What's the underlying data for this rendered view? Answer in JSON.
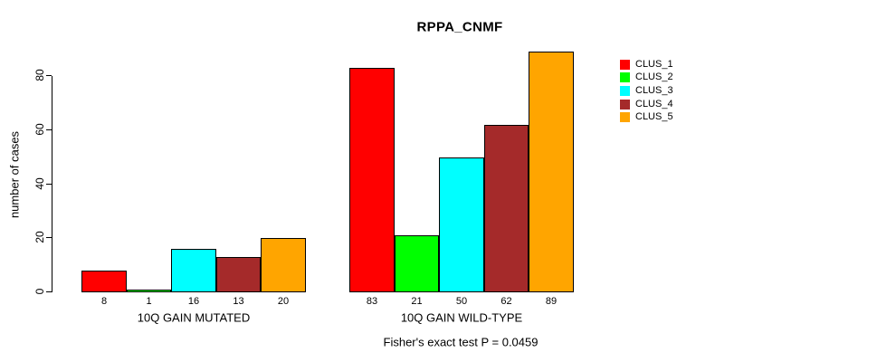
{
  "chart_data": {
    "type": "bar",
    "title": "RPPA_CNMF",
    "ylabel": "number of cases",
    "xlabel": "",
    "annotation": "Fisher's exact test P = 0.0459",
    "groups": [
      "10Q GAIN MUTATED",
      "10Q GAIN WILD-TYPE"
    ],
    "series": [
      {
        "name": "CLUS_1",
        "color": "#FF0000",
        "values": [
          8,
          83
        ]
      },
      {
        "name": "CLUS_2",
        "color": "#00FF00",
        "values": [
          1,
          21
        ]
      },
      {
        "name": "CLUS_3",
        "color": "#00FFFF",
        "values": [
          16,
          50
        ]
      },
      {
        "name": "CLUS_4",
        "color": "#A52A2A",
        "values": [
          13,
          62
        ]
      },
      {
        "name": "CLUS_5",
        "color": "#FFA500",
        "values": [
          20,
          89
        ]
      }
    ],
    "y_ticks": [
      0,
      20,
      40,
      60,
      80
    ],
    "ylim": [
      0,
      89
    ],
    "grid": false,
    "legend_position": "right",
    "bar_value_labels": true,
    "axis_color": "#000000",
    "bar_border_color": "#000000"
  }
}
